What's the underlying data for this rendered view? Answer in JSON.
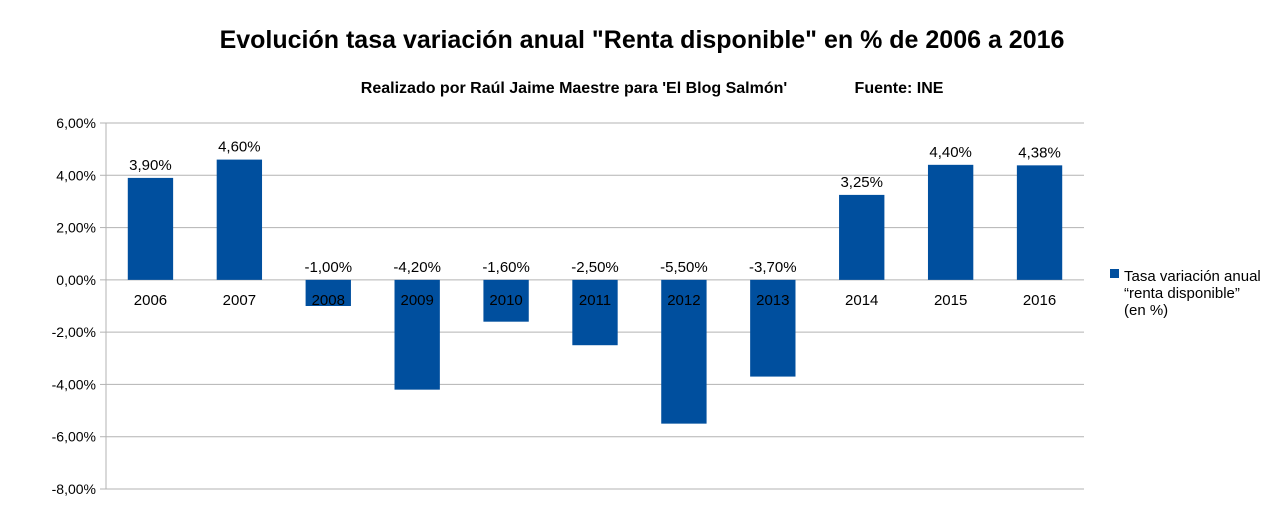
{
  "chart_data": {
    "type": "bar",
    "title": "Evolución tasa variación anual \"Renta disponible\" en % de 2006 a 2016",
    "subtitle_left": "Realizado por Raúl Jaime Maestre para 'El Blog Salmón'",
    "subtitle_right": "Fuente: INE",
    "xlabel": "",
    "ylabel": "",
    "categories": [
      "2006",
      "2007",
      "2008",
      "2009",
      "2010",
      "2011",
      "2012",
      "2013",
      "2014",
      "2015",
      "2016"
    ],
    "series": [
      {
        "name_lines": [
          "Tasa variación anual",
          "“renta disponible”",
          "(en %)"
        ],
        "color": "#004f9e",
        "values": [
          3.9,
          4.6,
          -1.0,
          -4.2,
          -1.6,
          -2.5,
          -5.5,
          -3.7,
          3.25,
          4.4,
          4.38
        ],
        "labels": [
          "3,90%",
          "4,60%",
          "-1,00%",
          "-4,20%",
          "-1,60%",
          "-2,50%",
          "-5,50%",
          "-3,70%",
          "3,25%",
          "4,40%",
          "4,38%"
        ]
      }
    ],
    "ylim": [
      -8,
      6
    ],
    "yticks": [
      6,
      4,
      2,
      0,
      -2,
      -4,
      -6,
      -8
    ],
    "ytick_labels": [
      "6,00%",
      "4,00%",
      "2,00%",
      "0,00%",
      "-2,00%",
      "-4,00%",
      "-6,00%",
      "-8,00%"
    ],
    "grid": true,
    "legend_position": "right"
  }
}
